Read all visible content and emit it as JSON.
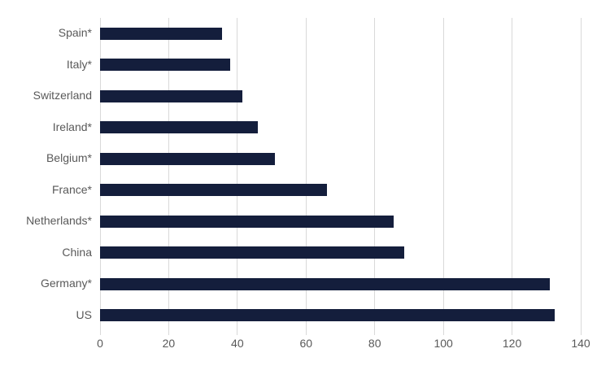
{
  "chart_data": {
    "type": "bar",
    "orientation": "horizontal",
    "title": "",
    "xlabel": "",
    "ylabel": "",
    "categories": [
      "Spain*",
      "Italy*",
      "Switzerland",
      "Ireland*",
      "Belgium*",
      "France*",
      "Netherlands*",
      "China",
      "Germany*",
      "US"
    ],
    "values": [
      35.5,
      38,
      41.5,
      46,
      51,
      66,
      85.5,
      88.5,
      131,
      132.5
    ],
    "xlim": [
      0,
      140
    ],
    "xticks": [
      0,
      20,
      40,
      60,
      80,
      100,
      120,
      140
    ],
    "grid": "vertical-major",
    "legend": "none",
    "colors": {
      "bar": "#141E3C",
      "gridline": "#D9D9D9",
      "axis_label": "#595959",
      "background": "#FFFFFF"
    }
  }
}
